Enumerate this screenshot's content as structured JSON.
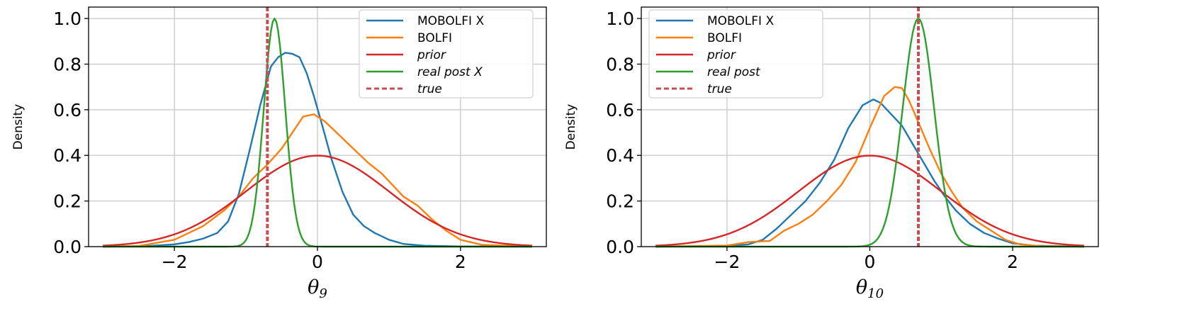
{
  "chart_data": [
    {
      "type": "line",
      "title": "",
      "xlabel": "θ",
      "xlabel_sub": "9",
      "ylabel": "Density",
      "xlim": [
        -3.2,
        3.2
      ],
      "ylim": [
        0,
        1.05
      ],
      "xticks": [
        -2,
        0,
        2
      ],
      "xtick_labels": [
        "−2",
        "0",
        "2"
      ],
      "yticks": [
        0,
        0.2,
        0.4,
        0.6,
        0.8,
        1.0
      ],
      "ytick_labels": [
        "0.0",
        "0.2",
        "0.4",
        "0.6",
        "0.8",
        "1.0"
      ],
      "grid": true,
      "legend_position": "top-right",
      "true_value": -0.7,
      "true_label": "true",
      "true_color": "#c44e52",
      "series": [
        {
          "name": "MOBOLFI X",
          "color": "#1f77b4",
          "italic": false,
          "x": [
            -3.0,
            -2.4,
            -2.0,
            -1.8,
            -1.6,
            -1.4,
            -1.25,
            -1.1,
            -0.95,
            -0.8,
            -0.65,
            -0.55,
            -0.45,
            -0.35,
            -0.25,
            -0.15,
            -0.05,
            0.05,
            0.2,
            0.35,
            0.5,
            0.65,
            0.8,
            1.0,
            1.2,
            1.5,
            2.0,
            3.0
          ],
          "y": [
            0.0,
            0.002,
            0.01,
            0.02,
            0.035,
            0.06,
            0.11,
            0.23,
            0.42,
            0.62,
            0.79,
            0.83,
            0.85,
            0.845,
            0.83,
            0.76,
            0.66,
            0.55,
            0.38,
            0.24,
            0.14,
            0.09,
            0.06,
            0.03,
            0.012,
            0.004,
            0.001,
            0.0
          ]
        },
        {
          "name": "BOLFI",
          "color": "#ff7f0e",
          "italic": false,
          "x": [
            -3.0,
            -2.5,
            -2.0,
            -1.6,
            -1.3,
            -1.1,
            -0.9,
            -0.7,
            -0.5,
            -0.35,
            -0.2,
            -0.05,
            0.1,
            0.3,
            0.5,
            0.7,
            0.9,
            1.05,
            1.2,
            1.4,
            1.6,
            1.8,
            2.0,
            2.3,
            3.0
          ],
          "y": [
            0.0,
            0.003,
            0.03,
            0.09,
            0.16,
            0.22,
            0.3,
            0.36,
            0.43,
            0.5,
            0.57,
            0.58,
            0.55,
            0.49,
            0.43,
            0.37,
            0.32,
            0.27,
            0.22,
            0.18,
            0.12,
            0.07,
            0.03,
            0.008,
            0.0
          ]
        },
        {
          "name": "prior",
          "color": "#d62728",
          "italic": true,
          "normal": {
            "mu": 0,
            "sigma": 1
          },
          "x": [],
          "y": []
        },
        {
          "name": "real post X",
          "color": "#2ca02c",
          "italic": true,
          "normal": {
            "mu": -0.6,
            "sigma": 0.15,
            "peak": 1.0
          },
          "x": [],
          "y": []
        }
      ]
    },
    {
      "type": "line",
      "title": "",
      "xlabel": "θ",
      "xlabel_sub": "10",
      "ylabel": "Density",
      "xlim": [
        -3.2,
        3.2
      ],
      "ylim": [
        0,
        1.05
      ],
      "xticks": [
        -2,
        0,
        2
      ],
      "xtick_labels": [
        "−2",
        "0",
        "2"
      ],
      "yticks": [
        0,
        0.2,
        0.4,
        0.6,
        0.8,
        1.0
      ],
      "ytick_labels": [
        "0.0",
        "0.2",
        "0.4",
        "0.6",
        "0.8",
        "1.0"
      ],
      "grid": true,
      "legend_position": "top-left",
      "true_value": 0.68,
      "true_label": "true",
      "true_color": "#c44e52",
      "series": [
        {
          "name": "MOBOLFI X",
          "color": "#1f77b4",
          "italic": false,
          "x": [
            -3.0,
            -2.0,
            -1.7,
            -1.5,
            -1.3,
            -1.1,
            -0.9,
            -0.7,
            -0.5,
            -0.3,
            -0.1,
            0.05,
            0.15,
            0.3,
            0.45,
            0.6,
            0.75,
            0.9,
            1.05,
            1.2,
            1.4,
            1.6,
            1.8,
            2.0,
            2.3,
            3.0
          ],
          "y": [
            0.0,
            0.003,
            0.01,
            0.03,
            0.08,
            0.14,
            0.2,
            0.28,
            0.38,
            0.52,
            0.62,
            0.645,
            0.63,
            0.58,
            0.53,
            0.45,
            0.37,
            0.29,
            0.22,
            0.16,
            0.1,
            0.06,
            0.035,
            0.015,
            0.004,
            0.0
          ]
        },
        {
          "name": "BOLFI",
          "color": "#ff7f0e",
          "italic": false,
          "x": [
            -3.0,
            -2.0,
            -1.7,
            -1.4,
            -1.2,
            -1.0,
            -0.8,
            -0.6,
            -0.4,
            -0.2,
            0.0,
            0.2,
            0.35,
            0.45,
            0.55,
            0.7,
            0.85,
            1.0,
            1.15,
            1.3,
            1.5,
            1.7,
            1.9,
            2.1,
            2.4,
            3.0
          ],
          "y": [
            0.0,
            0.005,
            0.02,
            0.025,
            0.07,
            0.1,
            0.14,
            0.2,
            0.27,
            0.37,
            0.52,
            0.66,
            0.7,
            0.695,
            0.64,
            0.53,
            0.42,
            0.32,
            0.24,
            0.17,
            0.11,
            0.07,
            0.03,
            0.01,
            0.002,
            0.0
          ]
        },
        {
          "name": "prior",
          "color": "#d62728",
          "italic": true,
          "normal": {
            "mu": 0,
            "sigma": 1
          },
          "x": [],
          "y": []
        },
        {
          "name": "real post",
          "color": "#2ca02c",
          "italic": true,
          "normal": {
            "mu": 0.68,
            "sigma": 0.22,
            "peak": 1.0
          },
          "x": [],
          "y": []
        }
      ]
    }
  ]
}
